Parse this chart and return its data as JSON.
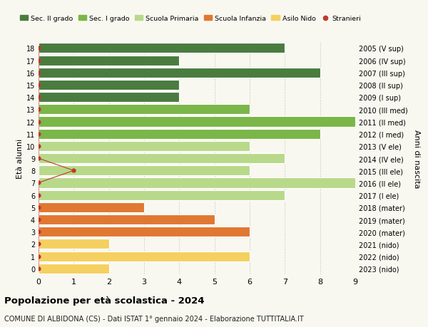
{
  "ages": [
    18,
    17,
    16,
    15,
    14,
    13,
    12,
    11,
    10,
    9,
    8,
    7,
    6,
    5,
    4,
    3,
    2,
    1,
    0
  ],
  "years": [
    "2005 (V sup)",
    "2006 (IV sup)",
    "2007 (III sup)",
    "2008 (II sup)",
    "2009 (I sup)",
    "2010 (III med)",
    "2011 (II med)",
    "2012 (I med)",
    "2013 (V ele)",
    "2014 (IV ele)",
    "2015 (III ele)",
    "2016 (II ele)",
    "2017 (I ele)",
    "2018 (mater)",
    "2019 (mater)",
    "2020 (mater)",
    "2021 (nido)",
    "2022 (nido)",
    "2023 (nido)"
  ],
  "values": [
    7,
    4,
    8,
    4,
    4,
    6,
    9,
    8,
    6,
    7,
    6,
    9,
    7,
    3,
    5,
    6,
    2,
    6,
    2
  ],
  "stranieri": [
    0,
    0,
    0,
    0,
    0,
    0,
    0,
    0,
    0,
    0,
    1,
    0,
    0,
    0,
    0,
    0,
    0,
    0,
    0
  ],
  "colors": [
    "#4a7c3f",
    "#4a7c3f",
    "#4a7c3f",
    "#4a7c3f",
    "#4a7c3f",
    "#7ab648",
    "#7ab648",
    "#7ab648",
    "#b8d98a",
    "#b8d98a",
    "#b8d98a",
    "#b8d98a",
    "#b8d98a",
    "#e07832",
    "#e07832",
    "#e07832",
    "#f5d060",
    "#f5d060",
    "#f5d060"
  ],
  "legend_labels": [
    "Sec. II grado",
    "Sec. I grado",
    "Scuola Primaria",
    "Scuola Infanzia",
    "Asilo Nido",
    "Stranieri"
  ],
  "legend_colors": [
    "#4a7c3f",
    "#7ab648",
    "#b8d98a",
    "#e07832",
    "#f5d060",
    "#c0392b"
  ],
  "title": "Popolazione per età scolastica - 2024",
  "subtitle": "COMUNE DI ALBIDONA (CS) - Dati ISTAT 1° gennaio 2024 - Elaborazione TUTTITALIA.IT",
  "ylabel": "Età alunni",
  "ylabel2": "Anni di nascita",
  "xlim": [
    0,
    9
  ],
  "stranieri_color": "#c0392b",
  "bg_color": "#f8f8f0",
  "bar_edge_color": "#ffffff",
  "grid_color": "#cccccc",
  "bar_height": 0.82
}
